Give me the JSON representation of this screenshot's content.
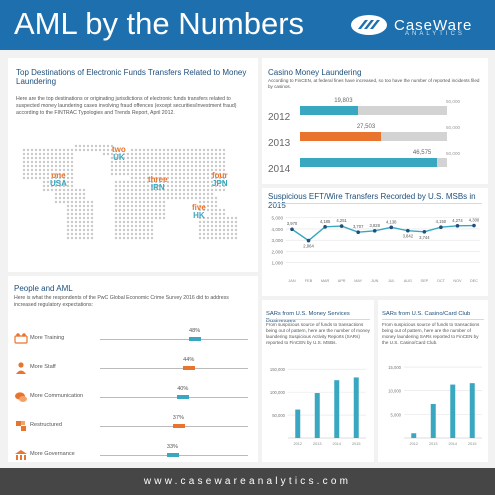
{
  "header": {
    "title": "AML by the Numbers",
    "logo_name": "CaseWare",
    "logo_sub": "ANALYTICS",
    "bg_color": "#1e6fae"
  },
  "map_panel": {
    "title": "Top Destinations of Electronic Funds Transfers Related to Money Laundering",
    "description": "Here are the top destinations or originating jurisdictions of electronic funds transfers related to suspected money laundering cases involving fraud offences (except securities/investment fraud) according to the FINTRAC Typologies and Trends Report, April 2012.",
    "destinations": [
      {
        "rank": "one",
        "code": "USA"
      },
      {
        "rank": "two",
        "code": "UK"
      },
      {
        "rank": "three",
        "code": "IRN"
      },
      {
        "rank": "four",
        "code": "JPN"
      },
      {
        "rank": "five",
        "code": "HK"
      }
    ]
  },
  "casino_panel": {
    "title": "Casino Money Laundering",
    "description": "According to FinCEN, at federal fines have increased, so too have the number of reported incidents filed by casinos.",
    "max_label": "50,000",
    "rows": [
      {
        "year": "2012",
        "value": 19803,
        "value_label": "19,803",
        "color": "#3aa7c0"
      },
      {
        "year": "2013",
        "value": 27503,
        "value_label": "27,503",
        "color": "#e8742e"
      },
      {
        "year": "2014",
        "value": 46575,
        "value_label": "46,575",
        "color": "#3aa7c0"
      }
    ]
  },
  "chart_data": [
    {
      "type": "line",
      "title": "Suspicious EFT/Wire Transfers Recorded by U.S. MSBs in 2015",
      "x": [
        "JAN",
        "FEB",
        "MAR",
        "APR",
        "MAY",
        "JUN",
        "JUL",
        "AUG",
        "SEP",
        "OCT",
        "NOV",
        "DEC"
      ],
      "series": [
        {
          "values": [
            3970,
            2964,
            4185,
            4251,
            3707,
            3828,
            4138,
            3842,
            3744,
            4150,
            4274,
            4300
          ]
        }
      ],
      "data_labels": [
        "3,970",
        "2,964",
        "4,185",
        "4,251",
        "3,707",
        "3,828",
        "4,138",
        "3,842",
        "3,744",
        "4,150",
        "4,274",
        "4,300"
      ],
      "yticks": [
        "5,000",
        "4,000",
        "3,000",
        "2,000",
        "1,000"
      ],
      "ylim": [
        0,
        5500
      ],
      "color": "#3aa7c0"
    },
    {
      "type": "bar",
      "title": "SARs from U.S. Money Services Businesses",
      "description": "From suspicious source of funds to transactions being out of pattern, here are the number of money laundering Suspicious Activity Reports (SARs) reported to FinCEN by U.S. MSBs.",
      "categories": [
        "2012",
        "2013",
        "2014",
        "2015"
      ],
      "values": [
        62000,
        98000,
        126000,
        132000
      ],
      "yticks": [
        "150,000",
        "100,000",
        "50,000"
      ],
      "ylim": [
        0,
        170000
      ],
      "color": "#3aa7c0"
    },
    {
      "type": "bar",
      "title": "SARs from U.S. Casino/Card Club",
      "description": "From suspicious source of funds to transactions being out of pattern, here are the number of money laundering SARs reported to FinCEN by the U.S. Casino/Card Club.",
      "categories": [
        "2012",
        "2013",
        "2014",
        "2015"
      ],
      "values": [
        1000,
        7200,
        11300,
        11600
      ],
      "yticks": [
        "15,000",
        "10,000",
        "5,000"
      ],
      "ylim": [
        0,
        16500
      ],
      "color": "#3aa7c0"
    }
  ],
  "people_panel": {
    "title": "People and AML",
    "description": "Here is what the respondents of the PwC Global Economic Crime Survey 2016 did to address increased regulatory expectations:",
    "rows": [
      {
        "label": "More Training",
        "pct": 48,
        "pct_label": "48%",
        "color": "#3aa7c0",
        "icon": "training-icon"
      },
      {
        "label": "More Staff",
        "pct": 44,
        "pct_label": "44%",
        "color": "#e8742e",
        "icon": "staff-icon"
      },
      {
        "label": "More Communication",
        "pct": 40,
        "pct_label": "40%",
        "color": "#3aa7c0",
        "icon": "communication-icon"
      },
      {
        "label": "Restructured",
        "pct": 37,
        "pct_label": "37%",
        "color": "#e8742e",
        "icon": "restructure-icon"
      },
      {
        "label": "More Governance",
        "pct": 33,
        "pct_label": "33%",
        "color": "#3aa7c0",
        "icon": "governance-icon"
      }
    ]
  },
  "footer": {
    "url": "www.casewareanalytics.com"
  }
}
